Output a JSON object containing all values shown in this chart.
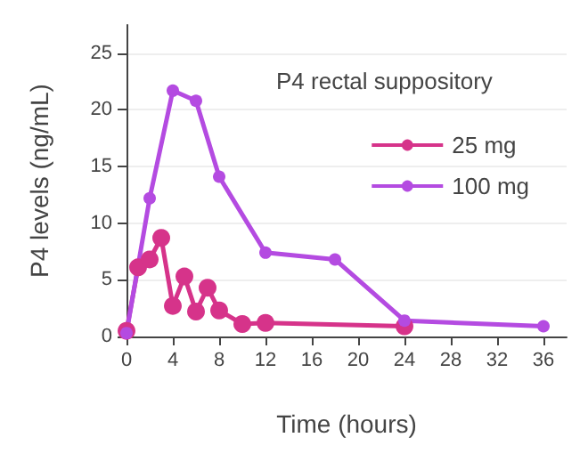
{
  "chart_data": {
    "type": "line",
    "title": "P4 rectal suppository",
    "xlabel": "Time (hours)",
    "ylabel": "P4 levels (ng/mL)",
    "series": [
      {
        "name": "25 mg",
        "color": "#d6338a",
        "x": [
          0,
          1,
          2,
          3,
          4,
          5,
          6,
          7,
          8,
          10,
          12,
          24
        ],
        "values": [
          0.5,
          6.1,
          6.8,
          8.7,
          2.7,
          5.3,
          2.2,
          4.3,
          2.3,
          1.1,
          1.2,
          0.9
        ]
      },
      {
        "name": "100 mg",
        "color": "#b44be1",
        "x": [
          0,
          2,
          4,
          6,
          8,
          12,
          18,
          24,
          36
        ],
        "values": [
          0.3,
          12.2,
          21.7,
          20.8,
          14.1,
          7.4,
          6.8,
          1.4,
          0.9
        ]
      }
    ],
    "xlim": [
      0,
      38
    ],
    "xticks": [
      0,
      4,
      8,
      12,
      16,
      20,
      24,
      28,
      32,
      36
    ],
    "ylim": [
      0,
      27.5
    ],
    "yticks": [
      0,
      5,
      10,
      15,
      20,
      25
    ],
    "grid": "y",
    "legend": "top right",
    "marker": "circle",
    "line_style": "solid"
  }
}
